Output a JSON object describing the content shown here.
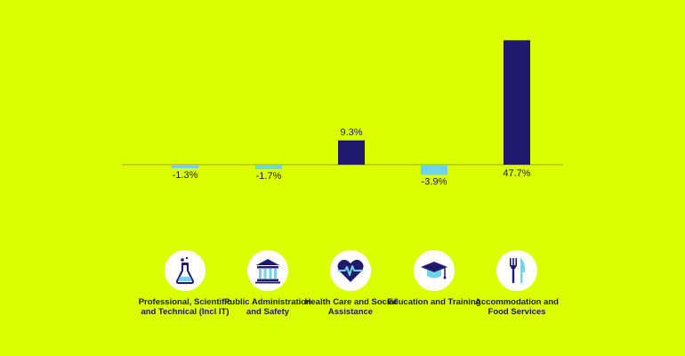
{
  "chart_data": {
    "type": "bar",
    "categories": [
      "Professional, Scientific and Technical (Incl IT)",
      "Public Administration and Safety",
      "Health Care and Social Assistance",
      "Education and Training",
      "Accommodation and Food Services"
    ],
    "values": [
      -1.3,
      -1.7,
      9.3,
      -3.9,
      47.7
    ],
    "data_labels": [
      "-1.3%",
      "-1.7%",
      "9.3%",
      "-3.9%",
      "47.7%"
    ],
    "ylim": [
      -12,
      48
    ],
    "grid": false,
    "colors": {
      "positive": "#1f1a6e",
      "negative": "#6fd4e4",
      "axis": "#9aa600",
      "label": "#1a1a4e"
    }
  },
  "categories": [
    {
      "label": "Professional, Scientific and Technical (Incl IT)",
      "icon": "flask-icon"
    },
    {
      "label": "Public Administration and Safety",
      "icon": "government-building-icon"
    },
    {
      "label": "Health Care and Social Assistance",
      "icon": "heart-pulse-icon"
    },
    {
      "label": "Education and Training",
      "icon": "graduation-cap-icon"
    },
    {
      "label": "Accommodation and Food Services",
      "icon": "fork-knife-icon"
    }
  ],
  "colors": {
    "background": "#dbff00",
    "icon_circle": "#ffffff"
  }
}
